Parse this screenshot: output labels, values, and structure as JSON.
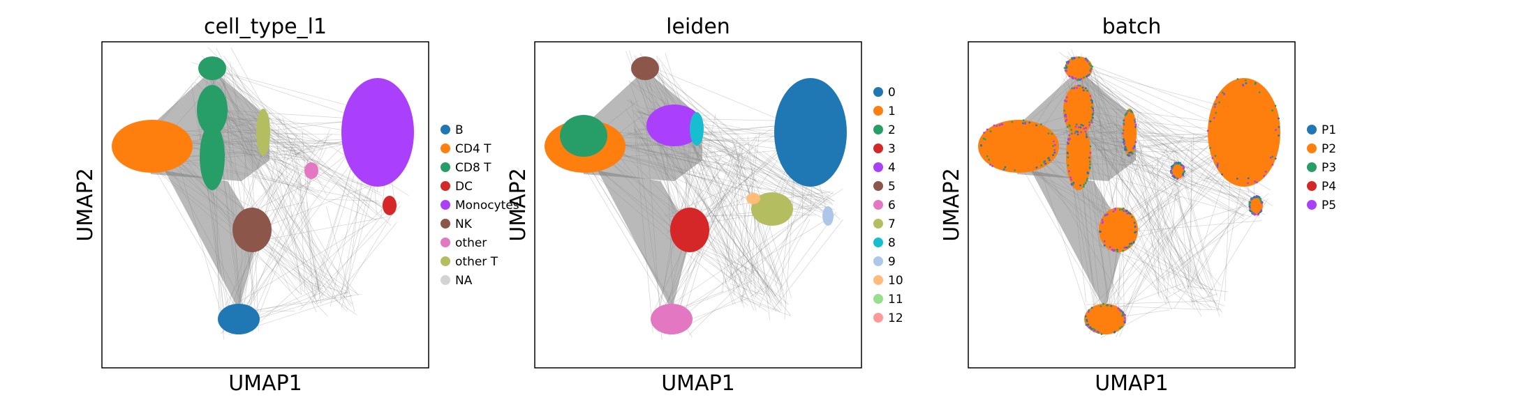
{
  "chart_data": [
    {
      "type": "scatter",
      "title": "cell_type_l1",
      "xlabel": "UMAP1",
      "ylabel": "UMAP2",
      "grid": false,
      "legend_position": "right-outside",
      "legend": [
        {
          "label": "B",
          "color": "#1f77b4"
        },
        {
          "label": "CD4 T",
          "color": "#ff7f0e"
        },
        {
          "label": "CD8 T",
          "color": "#279e68"
        },
        {
          "label": "DC",
          "color": "#d62728"
        },
        {
          "label": "Monocytes",
          "color": "#aa40fc"
        },
        {
          "label": "NK",
          "color": "#8c564b"
        },
        {
          "label": "other",
          "color": "#e377c2"
        },
        {
          "label": "other T",
          "color": "#b5bd61"
        },
        {
          "label": "NA",
          "color": "#d3d3d3"
        }
      ]
    },
    {
      "type": "scatter",
      "title": "leiden",
      "xlabel": "UMAP1",
      "ylabel": "UMAP2",
      "grid": false,
      "legend_position": "right-outside",
      "legend": [
        {
          "label": "0",
          "color": "#1f77b4"
        },
        {
          "label": "1",
          "color": "#ff7f0e"
        },
        {
          "label": "2",
          "color": "#279e68"
        },
        {
          "label": "3",
          "color": "#d62728"
        },
        {
          "label": "4",
          "color": "#aa40fc"
        },
        {
          "label": "5",
          "color": "#8c564b"
        },
        {
          "label": "6",
          "color": "#e377c2"
        },
        {
          "label": "7",
          "color": "#b5bd61"
        },
        {
          "label": "8",
          "color": "#17becf"
        },
        {
          "label": "9",
          "color": "#aec7e8"
        },
        {
          "label": "10",
          "color": "#ffbb78"
        },
        {
          "label": "11",
          "color": "#98df8a"
        },
        {
          "label": "12",
          "color": "#ff9896"
        }
      ]
    },
    {
      "type": "scatter",
      "title": "batch",
      "xlabel": "UMAP1",
      "ylabel": "UMAP2",
      "grid": false,
      "legend_position": "right-outside",
      "legend": [
        {
          "label": "P1",
          "color": "#1f77b4"
        },
        {
          "label": "P2",
          "color": "#ff7f0e"
        },
        {
          "label": "P3",
          "color": "#279e68"
        },
        {
          "label": "P4",
          "color": "#d62728"
        },
        {
          "label": "P5",
          "color": "#aa40fc"
        }
      ]
    }
  ],
  "colors": {
    "edges": "#808080",
    "axes_frame": "#000000"
  }
}
